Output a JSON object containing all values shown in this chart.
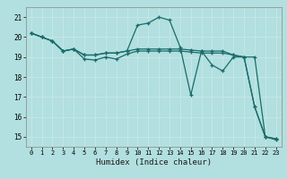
{
  "xlabel": "Humidex (Indice chaleur)",
  "ylabel": "",
  "background_color": "#b2dfdf",
  "grid_color": "#d0eeee",
  "line_color": "#1a6b6b",
  "xlim": [
    -0.5,
    23.5
  ],
  "ylim": [
    14.5,
    21.5
  ],
  "yticks": [
    15,
    16,
    17,
    18,
    19,
    20,
    21
  ],
  "xticks": [
    0,
    1,
    2,
    3,
    4,
    5,
    6,
    7,
    8,
    9,
    10,
    11,
    12,
    13,
    14,
    15,
    16,
    17,
    18,
    19,
    20,
    21,
    22,
    23
  ],
  "series": [
    {
      "x": [
        0,
        1,
        2,
        3,
        4,
        5,
        6,
        7,
        8,
        9,
        10,
        11,
        12,
        13,
        14,
        15,
        16,
        17,
        18,
        19,
        20,
        21,
        22,
        23
      ],
      "y": [
        20.2,
        20.0,
        19.8,
        19.3,
        19.4,
        18.9,
        18.85,
        19.0,
        18.9,
        19.15,
        19.3,
        19.3,
        19.3,
        19.3,
        19.3,
        19.25,
        19.2,
        19.2,
        19.2,
        19.1,
        19.0,
        16.5,
        15.0,
        14.9
      ]
    },
    {
      "x": [
        0,
        1,
        2,
        3,
        4,
        5,
        6,
        7,
        8,
        9,
        10,
        11,
        12,
        13,
        14,
        15,
        16,
        17,
        18,
        19,
        20,
        21,
        22,
        23
      ],
      "y": [
        20.2,
        20.0,
        19.8,
        19.3,
        19.4,
        19.1,
        19.1,
        19.2,
        19.2,
        19.3,
        20.6,
        20.7,
        21.0,
        20.85,
        19.5,
        17.1,
        19.3,
        18.6,
        18.3,
        19.0,
        19.0,
        19.0,
        15.0,
        14.85
      ]
    },
    {
      "x": [
        0,
        1,
        2,
        3,
        4,
        5,
        6,
        7,
        8,
        9,
        10,
        11,
        12,
        13,
        14,
        15,
        16,
        17,
        18,
        19,
        20,
        21,
        22,
        23
      ],
      "y": [
        20.2,
        20.0,
        19.8,
        19.3,
        19.4,
        19.1,
        19.1,
        19.2,
        19.2,
        19.3,
        19.4,
        19.4,
        19.4,
        19.4,
        19.4,
        19.35,
        19.3,
        19.3,
        19.3,
        19.1,
        19.0,
        16.5,
        15.0,
        14.9
      ]
    }
  ]
}
